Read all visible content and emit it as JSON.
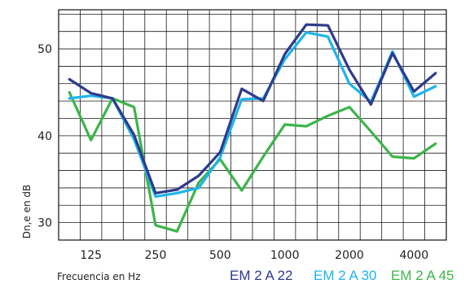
{
  "chart_data": {
    "type": "line",
    "title": "",
    "xlabel": "Frecuencia en Hz",
    "ylabel": "Dn,e en dB",
    "x": [
      100,
      125,
      160,
      200,
      250,
      315,
      400,
      500,
      630,
      800,
      1000,
      1250,
      1600,
      2000,
      2500,
      3150,
      4000,
      5000
    ],
    "x_tick_labels": [
      "125",
      "250",
      "500",
      "1000",
      "2000",
      "4000"
    ],
    "y_ticks": [
      30,
      40,
      50
    ],
    "ylim": [
      28,
      54.5
    ],
    "grid": true,
    "legend_position": "bottom-right",
    "series": [
      {
        "name": "EM 2 A 22",
        "color": "#2e3a8c",
        "values": [
          46.5,
          44.9,
          44.3,
          40.1,
          33.4,
          33.8,
          35.4,
          38.1,
          45.4,
          44.0,
          49.4,
          52.8,
          52.7,
          47.6,
          43.6,
          49.5,
          45.1,
          47.2
        ]
      },
      {
        "name": "EM 2 A 30",
        "color": "#1eb4ea",
        "values": [
          44.3,
          44.6,
          44.3,
          39.6,
          33.0,
          33.4,
          34.0,
          37.5,
          44.2,
          44.3,
          48.8,
          51.9,
          51.4,
          46.0,
          43.9,
          49.7,
          44.5,
          45.7
        ]
      },
      {
        "name": "EM 2 A 45",
        "color": "#3bb54a",
        "values": [
          45.0,
          39.5,
          44.3,
          43.3,
          29.7,
          29.0,
          34.6,
          37.3,
          33.7,
          37.6,
          41.3,
          41.1,
          42.3,
          43.3,
          40.5,
          37.6,
          37.4,
          39.1
        ]
      }
    ]
  }
}
